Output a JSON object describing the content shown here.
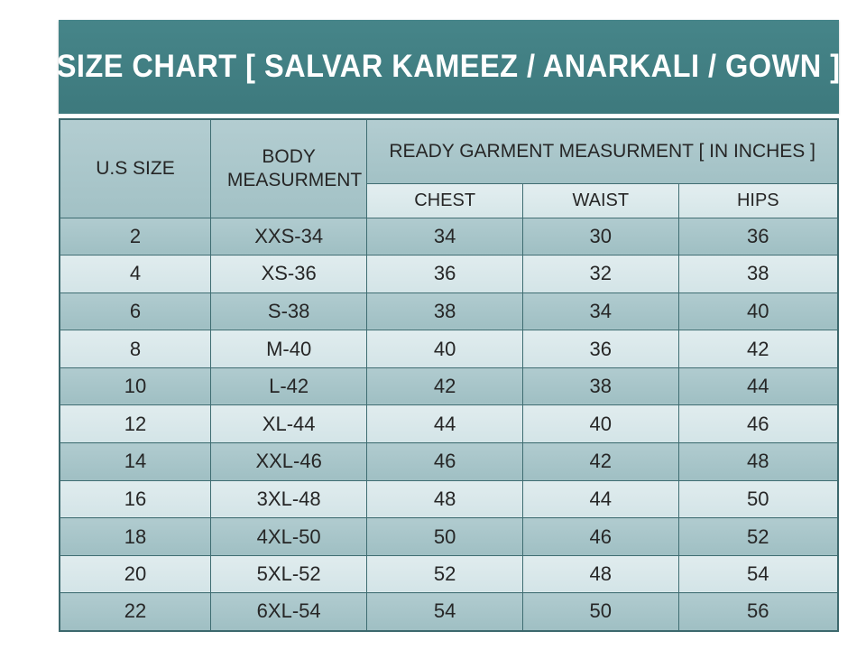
{
  "title": "SIZE CHART [ SALVAR KAMEEZ / ANARKALI / GOWN ]",
  "colors": {
    "title_bar_teal": "#417e82",
    "title_text": "#ffffff",
    "dark_row": "#a5c3c7",
    "light_row": "#d9e8ea",
    "grid_line": "#3f6d72",
    "cell_text": "#262626",
    "page_background": "#ffffff"
  },
  "chart_data": {
    "type": "table",
    "title": "SIZE CHART [ SALVAR KAMEEZ / ANARKALI / GOWN ]",
    "header": {
      "us_size": "U.S SIZE",
      "body_measurement": "BODY MEASURMENT",
      "group_label": "READY GARMENT MEASURMENT [ IN INCHES ]",
      "sub_headers": [
        "CHEST",
        "WAIST",
        "HIPS"
      ]
    },
    "columns": [
      "U.S SIZE",
      "BODY MEASURMENT",
      "CHEST",
      "WAIST",
      "HIPS"
    ],
    "rows": [
      [
        "2",
        "XXS-34",
        "34",
        "30",
        "36"
      ],
      [
        "4",
        "XS-36",
        "36",
        "32",
        "38"
      ],
      [
        "6",
        "S-38",
        "38",
        "34",
        "40"
      ],
      [
        "8",
        "M-40",
        "40",
        "36",
        "42"
      ],
      [
        "10",
        "L-42",
        "42",
        "38",
        "44"
      ],
      [
        "12",
        "XL-44",
        "44",
        "40",
        "46"
      ],
      [
        "14",
        "XXL-46",
        "46",
        "42",
        "48"
      ],
      [
        "16",
        "3XL-48",
        "48",
        "44",
        "50"
      ],
      [
        "18",
        "4XL-50",
        "50",
        "46",
        "52"
      ],
      [
        "20",
        "5XL-52",
        "52",
        "48",
        "54"
      ],
      [
        "22",
        "6XL-54",
        "54",
        "50",
        "56"
      ]
    ],
    "layout": {
      "striped": true,
      "first_data_row_shade": "dark",
      "grid": true,
      "legend_position": "none"
    }
  }
}
